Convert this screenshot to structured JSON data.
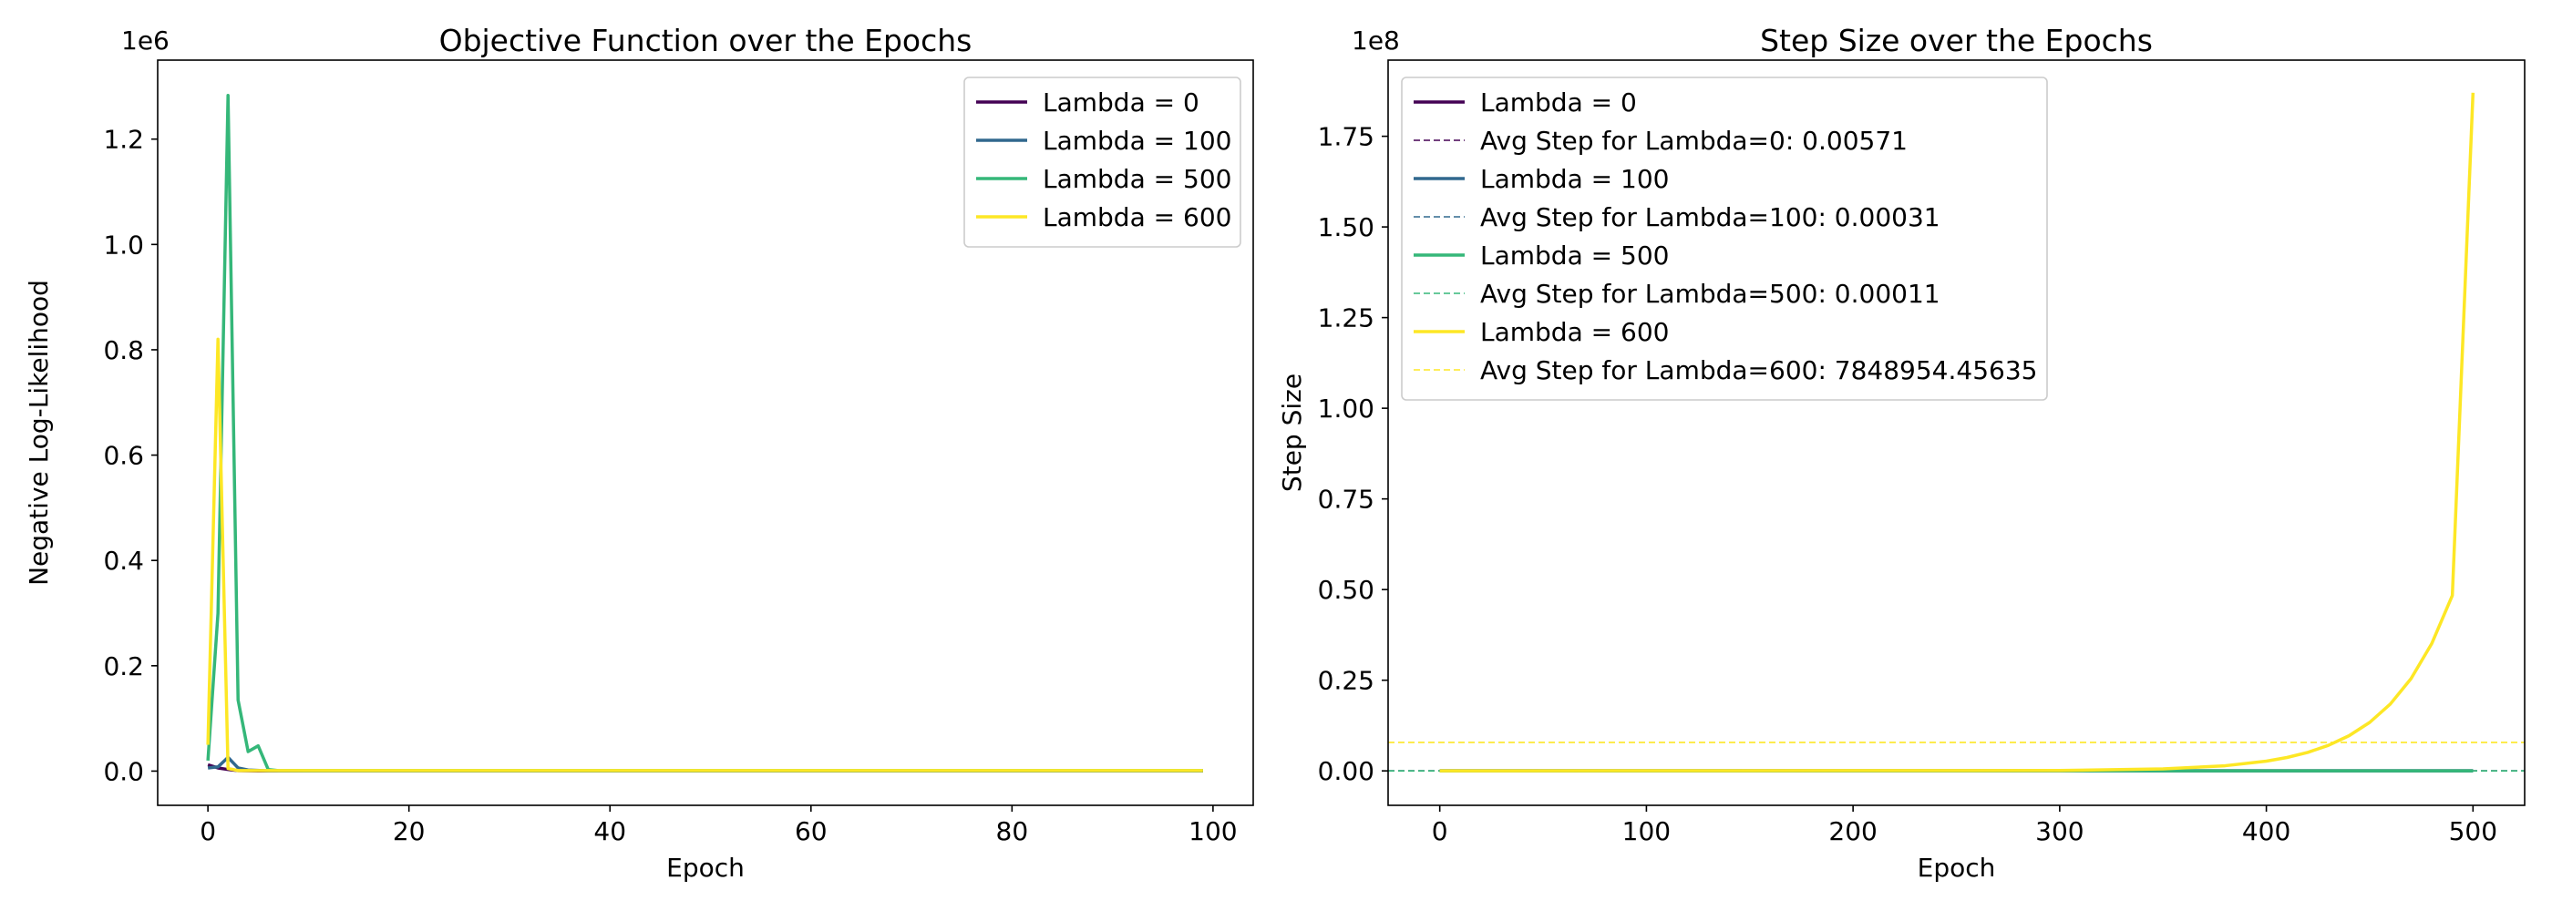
{
  "chart_data": [
    {
      "type": "line",
      "title": "Objective Function over the Epochs",
      "xlabel": "Epoch",
      "ylabel": "Negative Log-Likelihood",
      "y_multiplier_label": "1e6",
      "xlim": [
        -5,
        104
      ],
      "ylim": [
        -0.065,
        1.35
      ],
      "x_ticks": [
        0,
        20,
        40,
        60,
        80,
        100
      ],
      "y_ticks": [
        0.0,
        0.2,
        0.4,
        0.6,
        0.8,
        1.0,
        1.2
      ],
      "y_tick_labels": [
        "0.0",
        "0.2",
        "0.4",
        "0.6",
        "0.8",
        "1.0",
        "1.2"
      ],
      "grid": false,
      "legend_position": "upper-right",
      "series": [
        {
          "name": "Lambda = 0",
          "color": "#440154",
          "points": [
            [
              0,
              0.012
            ],
            [
              1,
              0.006
            ],
            [
              2,
              0.003
            ],
            [
              3,
              0.001
            ],
            [
              5,
              0.0004
            ],
            [
              10,
              0.0002
            ],
            [
              99,
              0.0002
            ]
          ]
        },
        {
          "name": "Lambda = 100",
          "color": "#31688e",
          "points": [
            [
              0,
              0.006
            ],
            [
              1,
              0.008
            ],
            [
              2,
              0.026
            ],
            [
              3,
              0.006
            ],
            [
              4,
              0.002
            ],
            [
              6,
              0.0006
            ],
            [
              10,
              0.0003
            ],
            [
              99,
              0.0003
            ]
          ]
        },
        {
          "name": "Lambda = 500",
          "color": "#35b779",
          "points": [
            [
              0,
              0.02
            ],
            [
              1,
              0.3
            ],
            [
              2,
              1.283
            ],
            [
              3,
              0.135
            ],
            [
              4,
              0.037
            ],
            [
              5,
              0.048
            ],
            [
              6,
              0.003
            ],
            [
              7,
              0.001
            ],
            [
              99,
              0.001
            ]
          ]
        },
        {
          "name": "Lambda = 600",
          "color": "#fde725",
          "points": [
            [
              0,
              0.05
            ],
            [
              1,
              0.82
            ],
            [
              2,
              0.005
            ],
            [
              3,
              0.001
            ],
            [
              99,
              0.001
            ]
          ]
        }
      ]
    },
    {
      "type": "line",
      "title": "Step Size over the Epochs",
      "xlabel": "Epoch",
      "ylabel": "Step Size",
      "y_multiplier_label": "1e8",
      "xlim": [
        -25,
        525
      ],
      "ylim": [
        -0.095,
        1.96
      ],
      "x_ticks": [
        0,
        100,
        200,
        300,
        400,
        500
      ],
      "y_ticks": [
        0.0,
        0.25,
        0.5,
        0.75,
        1.0,
        1.25,
        1.5,
        1.75
      ],
      "y_tick_labels": [
        "0.00",
        "0.25",
        "0.50",
        "0.75",
        "1.00",
        "1.25",
        "1.50",
        "1.75"
      ],
      "grid": false,
      "legend_position": "upper-left",
      "series": [
        {
          "name": "Lambda = 0",
          "color": "#440154",
          "style": "solid",
          "points": [
            [
              0,
              0.0
            ],
            [
              500,
              0.0
            ]
          ]
        },
        {
          "name": "Avg Step for Lambda=0: 0.00571",
          "color": "#440154",
          "style": "dashed",
          "hline": 5.71e-11
        },
        {
          "name": "Lambda = 100",
          "color": "#31688e",
          "style": "solid",
          "points": [
            [
              0,
              0.0
            ],
            [
              500,
              0.0
            ]
          ]
        },
        {
          "name": "Avg Step for Lambda=100: 0.00031",
          "color": "#31688e",
          "style": "dashed",
          "hline": 3.1e-12
        },
        {
          "name": "Lambda = 500",
          "color": "#35b779",
          "style": "solid",
          "points": [
            [
              0,
              0.0
            ],
            [
              500,
              0.0
            ]
          ]
        },
        {
          "name": "Avg Step for Lambda=500: 0.00011",
          "color": "#35b779",
          "style": "dashed",
          "hline": 1.1e-12
        },
        {
          "name": "Lambda = 600",
          "color": "#fde725",
          "style": "solid",
          "points": [
            [
              0,
              0.0
            ],
            [
              300,
              0.0011
            ],
            [
              350,
              0.0054
            ],
            [
              380,
              0.0141
            ],
            [
              400,
              0.0268
            ],
            [
              410,
              0.0369
            ],
            [
              420,
              0.0509
            ],
            [
              430,
              0.0703
            ],
            [
              440,
              0.0969
            ],
            [
              450,
              0.1336
            ],
            [
              460,
              0.1843
            ],
            [
              470,
              0.2542
            ],
            [
              480,
              0.3506
            ],
            [
              490,
              0.4835
            ],
            [
              500,
              1.87
            ]
          ]
        },
        {
          "name": "Avg Step for Lambda=600: 7848954.45635",
          "color": "#fde725",
          "style": "dashed",
          "hline": 0.0784895445635
        }
      ]
    }
  ]
}
